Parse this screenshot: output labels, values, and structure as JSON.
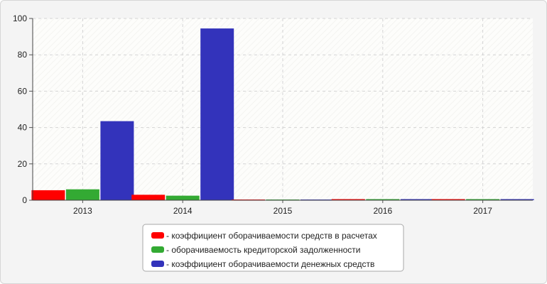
{
  "chart_data": {
    "type": "bar",
    "categories": [
      "2013",
      "2014",
      "2015",
      "2016",
      "2017"
    ],
    "series": [
      {
        "name": "- коэффициент оборачиваемости средств в расчетах",
        "color": "#ff0000",
        "values": [
          5.5,
          3.0,
          0.2,
          0.6,
          0.6
        ]
      },
      {
        "name": "- оборачиваемость кредиторской задолженности",
        "color": "#33aa33",
        "values": [
          6.0,
          2.5,
          0.2,
          0.6,
          0.6
        ]
      },
      {
        "name": "- коэффициент оборачиваемости денежных средств",
        "color": "#3333bb",
        "values": [
          43.5,
          94.5,
          0.2,
          0.6,
          0.6
        ]
      }
    ],
    "ylim": [
      0,
      100
    ],
    "yticks": [
      0,
      20,
      40,
      60,
      80,
      100
    ],
    "grid": true,
    "legend": "bottom-center"
  }
}
